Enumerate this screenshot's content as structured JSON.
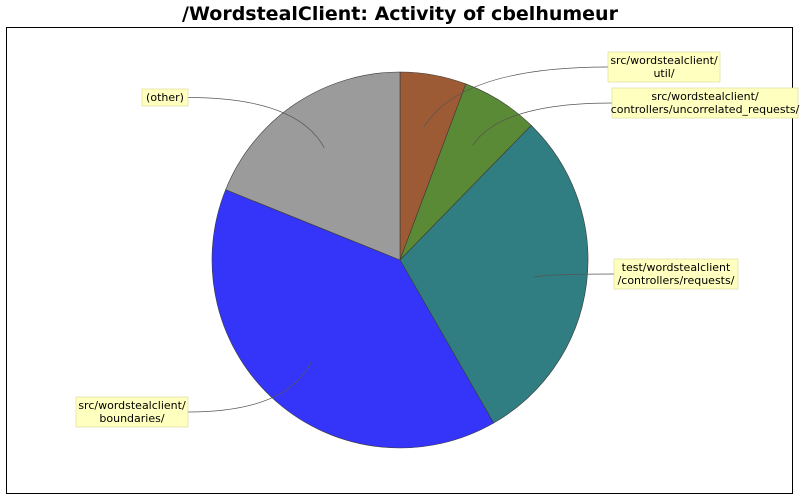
{
  "title": "/WordstealClient: Activity of cbelhumeur",
  "chart_data": {
    "type": "pie",
    "title": "/WordstealClient: Activity of cbelhumeur",
    "slices": [
      {
        "label": [
          "src/wordstealclient/",
          "util/"
        ],
        "value": 5.7,
        "color": "#9c5a35"
      },
      {
        "label": [
          "src/wordstealclient/",
          "controllers/uncorrelated_requests/"
        ],
        "value": 6.6,
        "color": "#5a8a35"
      },
      {
        "label": [
          "test/wordstealclient",
          "/controllers/requests/"
        ],
        "value": 29.4,
        "color": "#307d82"
      },
      {
        "label": [
          "src/wordstealclient/",
          "boundaries/"
        ],
        "value": 39.4,
        "color": "#3535fa"
      },
      {
        "label": [
          "(other)"
        ],
        "value": 18.9,
        "color": "#9b9b9b"
      }
    ],
    "start_direction": "top",
    "order": "clockwise"
  }
}
